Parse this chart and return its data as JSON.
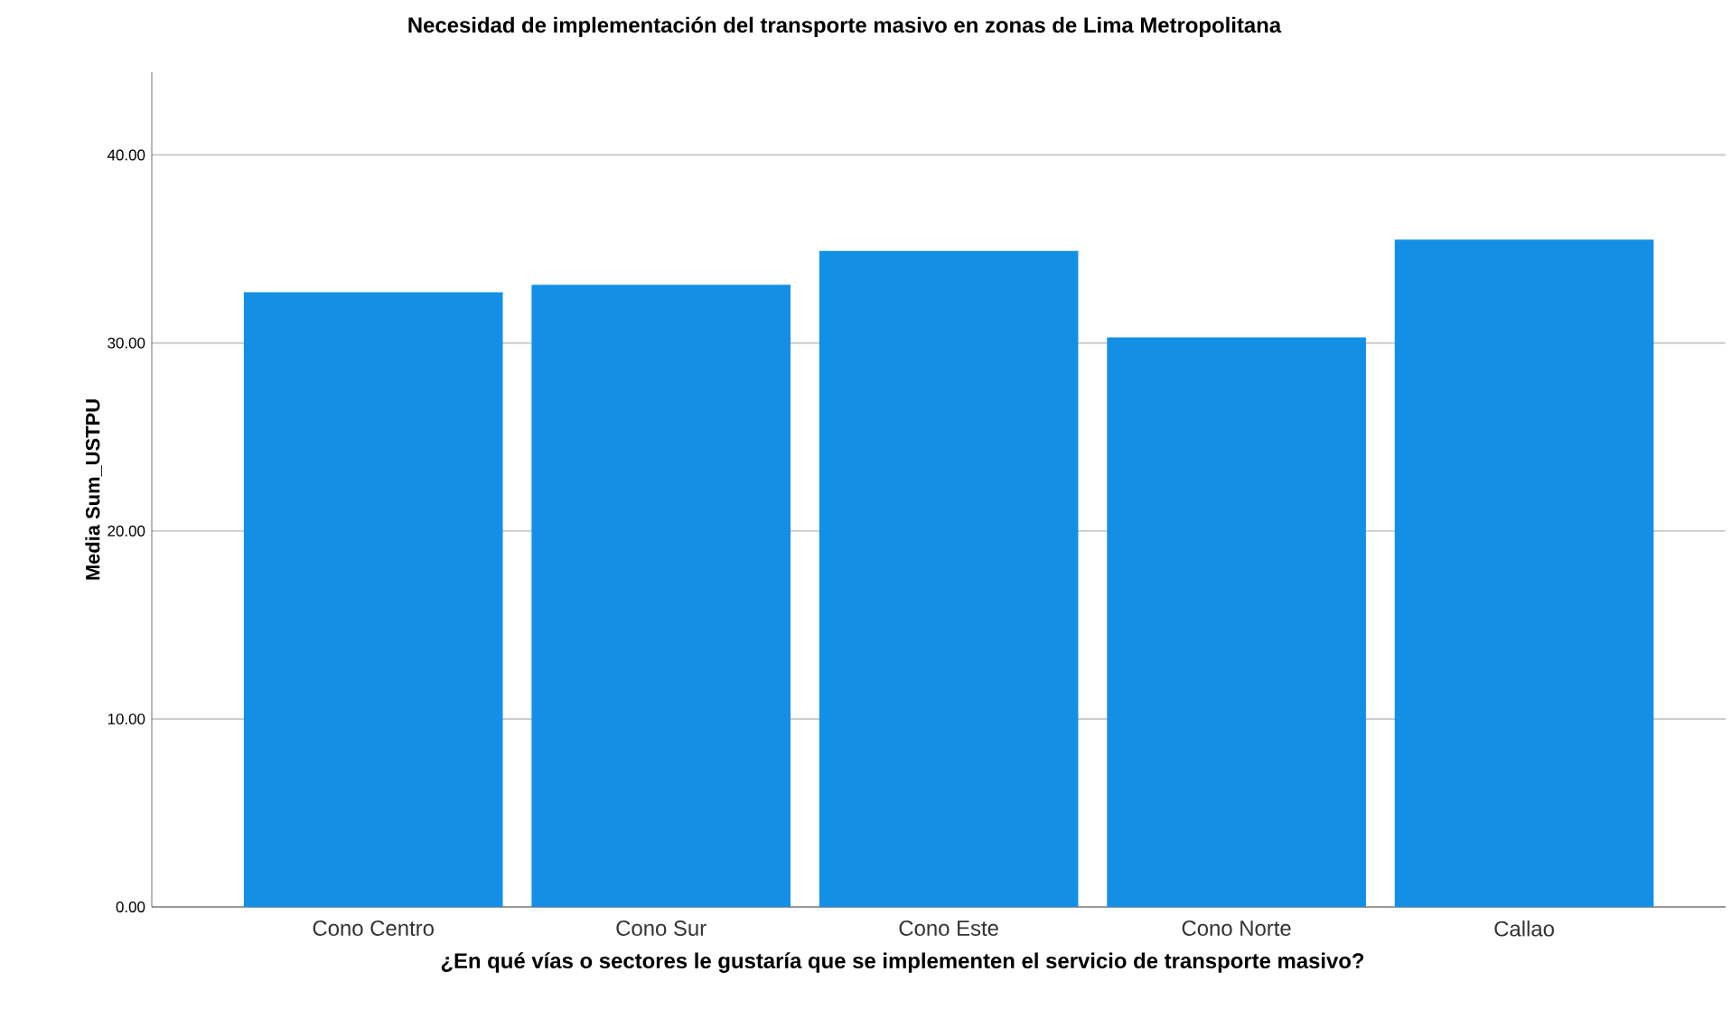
{
  "chart_data": {
    "type": "bar",
    "title": "Necesidad de implementación del transporte masivo en zonas de Lima Metropolitana",
    "xlabel": "¿En qué vías o sectores le gustaría que se implementen el servicio de transporte masivo?",
    "ylabel": "Media Sum_USTPU",
    "categories": [
      "Cono Centro",
      "Cono Sur",
      "Cono Este",
      "Cono Norte",
      "Callao"
    ],
    "values": [
      32.7,
      33.1,
      34.9,
      30.3,
      35.5
    ],
    "color": "#1390e6",
    "ylim": [
      0,
      44.4
    ],
    "yticks": [
      {
        "value": 0,
        "label": "0.00"
      },
      {
        "value": 10,
        "label": "10.00"
      },
      {
        "value": 20,
        "label": "20.00"
      },
      {
        "value": 30,
        "label": "30.00"
      },
      {
        "value": 40,
        "label": "40.00"
      }
    ],
    "grid": "y"
  }
}
